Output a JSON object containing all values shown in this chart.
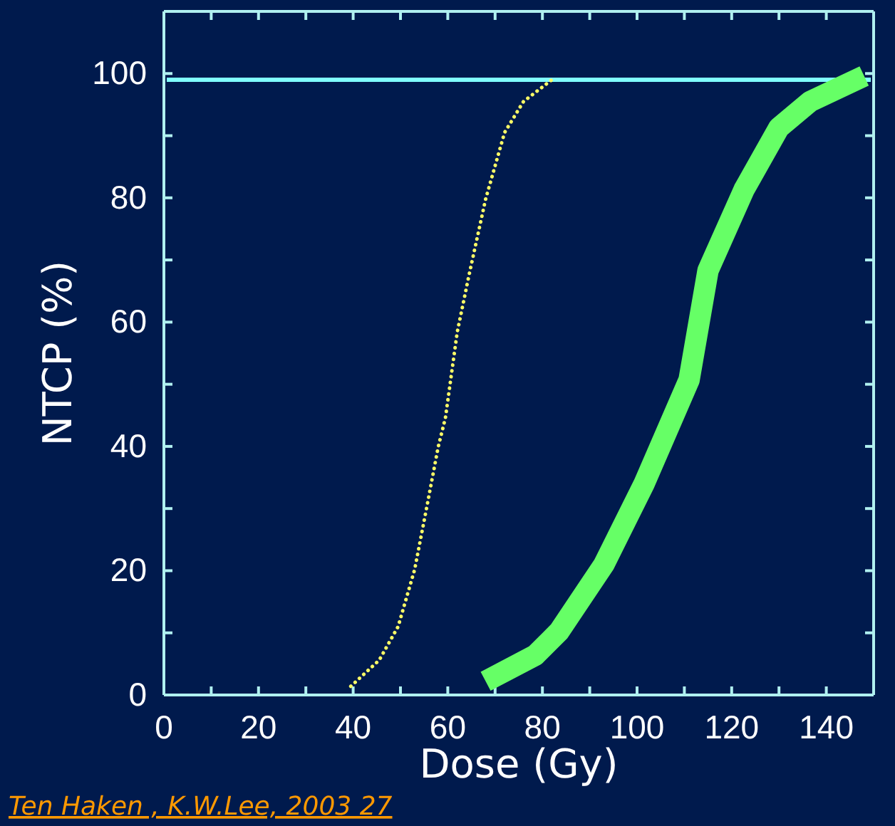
{
  "chart_data": {
    "type": "line",
    "xlabel": "Dose (Gy)",
    "ylabel": "NTCP (%)",
    "xlim": [
      0,
      150
    ],
    "ylim": [
      0,
      110
    ],
    "xticks": [
      0,
      {
        "value": 10,
        "label": null
      },
      20,
      {
        "value": 30,
        "label": null
      },
      40,
      {
        "value": 50,
        "label": null
      },
      60,
      {
        "value": 70,
        "label": null
      },
      80,
      {
        "value": 90,
        "label": null
      },
      100,
      {
        "value": 110,
        "label": null
      },
      120,
      {
        "value": 130,
        "label": null
      },
      140
    ],
    "yticks": [
      0,
      {
        "value": 10,
        "label": null
      },
      20,
      {
        "value": 30,
        "label": null
      },
      40,
      {
        "value": 50,
        "label": null
      },
      60,
      {
        "value": 70,
        "label": null
      },
      80,
      {
        "value": 90,
        "label": null
      },
      100
    ],
    "marker": "none",
    "series": [
      {
        "color": "#ffff66",
        "line_style": "dotted",
        "x": [
          39.5,
          45.5,
          49.5,
          53,
          55.5,
          58,
          59.5,
          62,
          64.5,
          68,
          72,
          76,
          82
        ],
        "values": [
          1.4,
          5.6,
          11,
          20.2,
          30,
          40,
          44.6,
          58.4,
          67.6,
          79.8,
          90.5,
          95.5,
          99
        ]
      },
      {
        "color": "#66ff66",
        "line_style": "solid",
        "x": [
          68,
          78.5,
          83.5,
          93,
          101.5,
          111,
          115,
          122.6,
          130,
          136.6,
          148
        ],
        "values": [
          2.2,
          6.4,
          10.2,
          21,
          34,
          50.7,
          68.3,
          81.3,
          91.3,
          95.5,
          99.6
        ]
      }
    ],
    "ref_lines": [
      {
        "axis": "y",
        "value": 99,
        "color": "#80ffff"
      }
    ],
    "annotations": [
      "Ten Haken , K.W.Lee, 2003 27"
    ]
  }
}
